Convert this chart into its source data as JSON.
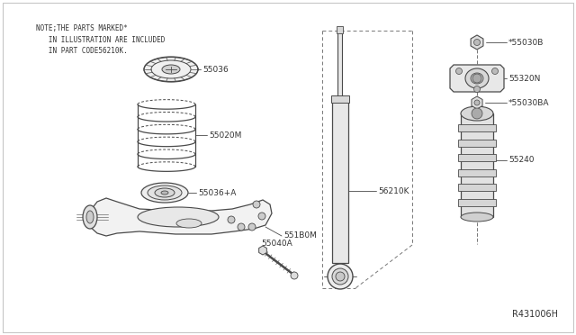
{
  "bg_color": "#ffffff",
  "line_color": "#4a4a4a",
  "text_color": "#333333",
  "note_line1": "NOTE;THE PARTS MARKED*",
  "note_line2": "   IN ILLUSTRATION ARE INCLUDED",
  "note_line3": "   IN PART CODE56210K.",
  "ref_code": "R431006H",
  "fig_width": 6.4,
  "fig_height": 3.72,
  "dpi": 100
}
